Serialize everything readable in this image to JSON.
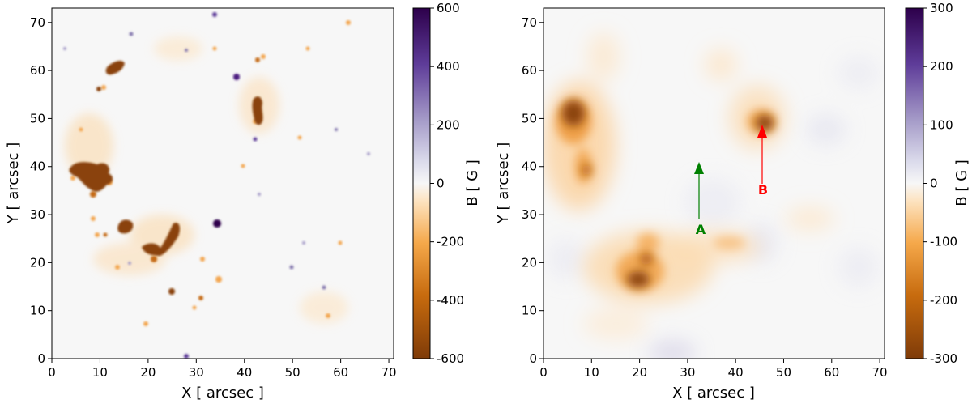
{
  "panels": [
    {
      "xlabel": "X [ arcsec ]",
      "ylabel": "Y [ arcsec ]",
      "xlim": [
        0,
        71
      ],
      "ylim": [
        0,
        73
      ],
      "xticks": [
        "0",
        "10",
        "20",
        "30",
        "40",
        "50",
        "60",
        "70"
      ],
      "yticks": [
        "0",
        "10",
        "20",
        "30",
        "40",
        "50",
        "60",
        "70"
      ],
      "colorbar": {
        "label": "B [ G ]",
        "ticks": [
          "600",
          "400",
          "200",
          "0",
          "-200",
          "-400",
          "-600"
        ],
        "range": [
          -600,
          600
        ]
      }
    },
    {
      "xlabel": "X [ arcsec ]",
      "ylabel": "Y [ arcsec ]",
      "xlim": [
        0,
        71
      ],
      "ylim": [
        0,
        73
      ],
      "xticks": [
        "0",
        "10",
        "20",
        "30",
        "40",
        "50",
        "60",
        "70"
      ],
      "yticks": [
        "0",
        "10",
        "20",
        "30",
        "40",
        "50",
        "60",
        "70"
      ],
      "colorbar": {
        "label": "B [ G ]",
        "ticks": [
          "300",
          "200",
          "100",
          "0",
          "-100",
          "-200",
          "-300"
        ],
        "range": [
          -300,
          300
        ]
      },
      "annotations": [
        {
          "label": "A",
          "color": "#008000",
          "x": 32,
          "y_from": 27,
          "y_to": 41
        },
        {
          "label": "B",
          "color": "#ff0000",
          "x": 45,
          "y_from": 35,
          "y_to": 49
        }
      ]
    }
  ],
  "colors": {
    "cmap_negative": "#7f3b08",
    "cmap_mid": "#f7f7f7",
    "cmap_positive": "#2d004b"
  }
}
